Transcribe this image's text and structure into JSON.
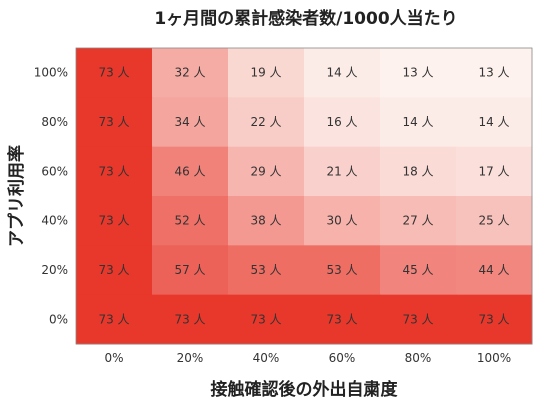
{
  "chart_data": {
    "type": "heatmap",
    "title": "1ヶ月間の累計感染者数/1000人当たり",
    "xlabel": "接触確認後の外出自粛度",
    "ylabel": "アプリ利用率",
    "x_categories": [
      "0%",
      "20%",
      "40%",
      "60%",
      "80%",
      "100%"
    ],
    "y_categories": [
      "100%",
      "80%",
      "60%",
      "40%",
      "20%",
      "0%"
    ],
    "unit": "人",
    "values": [
      [
        73,
        32,
        19,
        14,
        13,
        13
      ],
      [
        73,
        34,
        22,
        16,
        14,
        14
      ],
      [
        73,
        46,
        29,
        21,
        18,
        17
      ],
      [
        73,
        52,
        38,
        30,
        27,
        25
      ],
      [
        73,
        57,
        53,
        53,
        45,
        44
      ],
      [
        73,
        73,
        73,
        73,
        73,
        73
      ]
    ],
    "value_range": [
      13,
      73
    ],
    "colormap": {
      "low": "#fdf2ee",
      "high": "#e8372b"
    },
    "grid": false,
    "legend": "none"
  }
}
